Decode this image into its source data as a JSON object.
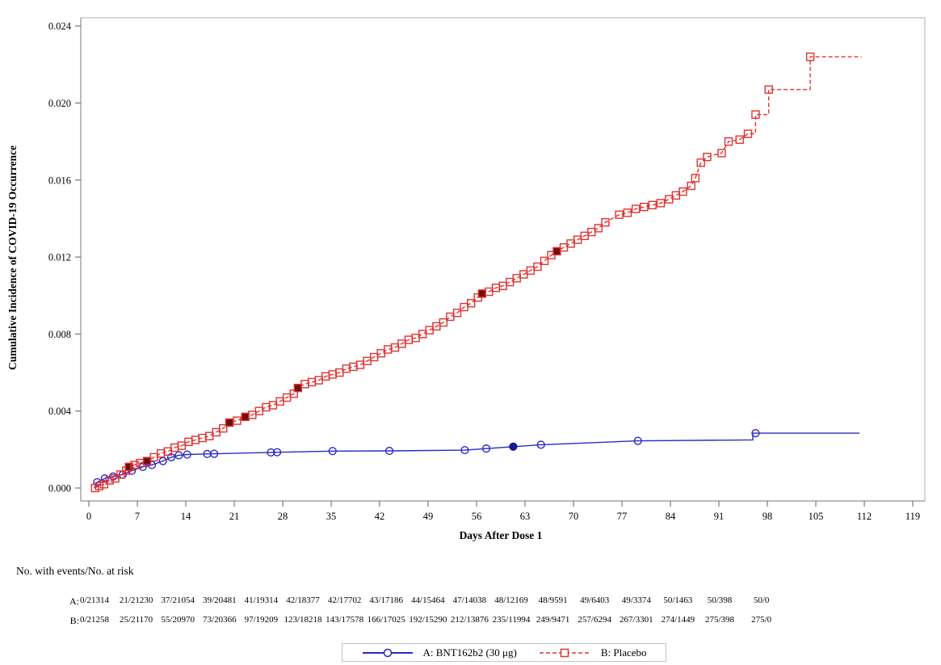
{
  "risk_table": {
    "header": "No. with events/No. at risk",
    "rows": [
      {
        "label": "A:",
        "values": [
          "0/21314",
          "21/21230",
          "37/21054",
          "39/20481",
          "41/19314",
          "42/18377",
          "42/17702",
          "43/17186",
          "44/15464",
          "47/14038",
          "48/12169",
          "48/9591",
          "49/6403",
          "49/3374",
          "50/1463",
          "50/398",
          "50/0"
        ]
      },
      {
        "label": "B:",
        "values": [
          "0/21258",
          "25/21170",
          "55/20970",
          "73/20366",
          "97/19209",
          "123/18218",
          "143/17578",
          "166/17025",
          "192/15290",
          "212/13876",
          "235/11994",
          "249/9471",
          "257/6294",
          "267/3301",
          "274/1449",
          "275/398",
          "275/0"
        ]
      }
    ]
  },
  "chart_data": {
    "type": "line",
    "title": "",
    "xlabel": "Days After Dose 1",
    "ylabel": "Cumulative Incidence of COVID-19 Occurrence",
    "xlim": [
      0,
      119
    ],
    "ylim": [
      0,
      0.024
    ],
    "grid": false,
    "legend_position": "bottom",
    "x_ticks": [
      0,
      7,
      14,
      21,
      28,
      35,
      42,
      49,
      56,
      63,
      70,
      77,
      84,
      91,
      98,
      105,
      112,
      119
    ],
    "x_tick_labels": [
      "0",
      "7",
      "14",
      "21",
      "28",
      "35",
      "42",
      "49",
      "56",
      "63",
      "70",
      "77",
      "84",
      "91",
      "98",
      "105",
      "112",
      "119"
    ],
    "y_ticks": [
      0.0,
      0.004,
      0.008,
      0.012,
      0.016,
      0.02,
      0.024
    ],
    "y_tick_labels": [
      "0.000",
      "0.004",
      "0.008",
      "0.012",
      "0.016",
      "0.020",
      "0.024"
    ],
    "frame_color": "#bdbdbd",
    "axis_color": "#9a9a9a",
    "tick_color": "#777777",
    "series": [
      {
        "name": "A: BNT162b2 (30 μg)",
        "color": "#2a2ac4",
        "filled_color": "#15159d",
        "line_style": "solid",
        "marker": "circle",
        "line_points": [
          [
            0.8,
            0.0
          ],
          [
            1.2,
            0.0003
          ],
          [
            2.3,
            0.0005
          ],
          [
            3.5,
            0.0006
          ],
          [
            4.9,
            0.0007
          ],
          [
            6.2,
            0.0009
          ],
          [
            7.8,
            0.0011
          ],
          [
            9.1,
            0.0012
          ],
          [
            10.7,
            0.0014
          ],
          [
            11.9,
            0.0016
          ],
          [
            13.0,
            0.0017
          ],
          [
            14.2,
            0.00174
          ],
          [
            17.1,
            0.00177
          ],
          [
            18.1,
            0.00178
          ],
          [
            26.3,
            0.00185
          ],
          [
            27.2,
            0.00186
          ],
          [
            35.2,
            0.00192
          ],
          [
            43.4,
            0.00193
          ],
          [
            54.3,
            0.00197
          ],
          [
            57.4,
            0.00205
          ],
          [
            61.3,
            0.00215
          ],
          [
            65.3,
            0.00225
          ],
          [
            79.3,
            0.00245
          ],
          [
            95.9,
            0.0025
          ],
          [
            95.9,
            0.00285
          ],
          [
            111.3,
            0.00285
          ]
        ],
        "markers": [
          [
            1.2,
            0.0003,
            0
          ],
          [
            2.3,
            0.0005,
            0
          ],
          [
            3.5,
            0.0006,
            0
          ],
          [
            4.9,
            0.0007,
            0
          ],
          [
            6.2,
            0.0009,
            0
          ],
          [
            7.8,
            0.0011,
            0
          ],
          [
            9.1,
            0.0012,
            0
          ],
          [
            10.7,
            0.0014,
            0
          ],
          [
            11.9,
            0.0016,
            0
          ],
          [
            13.0,
            0.0017,
            0
          ],
          [
            14.2,
            0.00174,
            0
          ],
          [
            17.1,
            0.00177,
            0
          ],
          [
            18.1,
            0.00178,
            0
          ],
          [
            26.3,
            0.00185,
            0
          ],
          [
            27.2,
            0.00186,
            0
          ],
          [
            35.2,
            0.00192,
            0
          ],
          [
            43.4,
            0.00193,
            0
          ],
          [
            54.3,
            0.00197,
            0
          ],
          [
            57.4,
            0.00205,
            0
          ],
          [
            61.3,
            0.00215,
            1
          ],
          [
            65.3,
            0.00225,
            0
          ],
          [
            79.3,
            0.00245,
            0
          ],
          [
            96.3,
            0.00285,
            0
          ]
        ]
      },
      {
        "name": "B: Placebo",
        "color": "#e03232",
        "filled_color": "#6e0e0e",
        "line_style": "dashed",
        "marker": "square",
        "line_points": [
          [
            0.8,
            0.0
          ],
          [
            1.5,
            0.0001
          ],
          [
            2.2,
            0.0002
          ],
          [
            3.0,
            0.0004
          ],
          [
            3.8,
            0.0005
          ],
          [
            4.6,
            0.0007
          ],
          [
            5.4,
            0.0009
          ],
          [
            5.8,
            0.0011
          ],
          [
            6.6,
            0.0012
          ],
          [
            7.4,
            0.0013
          ],
          [
            8.4,
            0.0014
          ],
          [
            9.4,
            0.0016
          ],
          [
            10.4,
            0.0018
          ],
          [
            11.4,
            0.0019
          ],
          [
            12.4,
            0.0021
          ],
          [
            13.4,
            0.0022
          ],
          [
            14.4,
            0.0024
          ],
          [
            15.4,
            0.0025
          ],
          [
            16.4,
            0.0026
          ],
          [
            17.4,
            0.0027
          ],
          [
            18.4,
            0.0029
          ],
          [
            19.4,
            0.0031
          ],
          [
            20.3,
            0.0034
          ],
          [
            21.4,
            0.0035
          ],
          [
            22.6,
            0.0037
          ],
          [
            23.6,
            0.0038
          ],
          [
            24.6,
            0.004
          ],
          [
            25.6,
            0.0042
          ],
          [
            26.6,
            0.0043
          ],
          [
            27.6,
            0.0045
          ],
          [
            28.6,
            0.0047
          ],
          [
            29.6,
            0.0049
          ],
          [
            30.2,
            0.0052
          ],
          [
            31.2,
            0.0054
          ],
          [
            32.2,
            0.0055
          ],
          [
            33.2,
            0.0056
          ],
          [
            34.2,
            0.0058
          ],
          [
            35.2,
            0.0059
          ],
          [
            36.2,
            0.006
          ],
          [
            37.2,
            0.0062
          ],
          [
            38.2,
            0.0063
          ],
          [
            39.2,
            0.0064
          ],
          [
            40.2,
            0.0066
          ],
          [
            41.2,
            0.0068
          ],
          [
            42.2,
            0.007
          ],
          [
            43.2,
            0.0072
          ],
          [
            44.2,
            0.0073
          ],
          [
            45.2,
            0.0075
          ],
          [
            46.2,
            0.0077
          ],
          [
            47.2,
            0.0078
          ],
          [
            48.2,
            0.008
          ],
          [
            49.2,
            0.0082
          ],
          [
            50.2,
            0.0084
          ],
          [
            51.2,
            0.0086
          ],
          [
            52.2,
            0.0089
          ],
          [
            53.2,
            0.0091
          ],
          [
            54.2,
            0.0094
          ],
          [
            55.2,
            0.0096
          ],
          [
            56.2,
            0.0099
          ],
          [
            56.8,
            0.0101
          ],
          [
            57.8,
            0.0102
          ],
          [
            58.8,
            0.0104
          ],
          [
            59.8,
            0.0105
          ],
          [
            60.8,
            0.0107
          ],
          [
            61.8,
            0.0109
          ],
          [
            62.8,
            0.0111
          ],
          [
            63.8,
            0.0113
          ],
          [
            64.8,
            0.0115
          ],
          [
            65.8,
            0.0118
          ],
          [
            66.8,
            0.0121
          ],
          [
            67.6,
            0.0123
          ],
          [
            68.6,
            0.0125
          ],
          [
            69.6,
            0.0127
          ],
          [
            70.6,
            0.0129
          ],
          [
            71.6,
            0.0131
          ],
          [
            72.6,
            0.0133
          ],
          [
            73.6,
            0.0135
          ],
          [
            74.6,
            0.0138
          ],
          [
            76.6,
            0.0142
          ],
          [
            77.8,
            0.0143
          ],
          [
            79.0,
            0.0145
          ],
          [
            80.2,
            0.0146
          ],
          [
            81.4,
            0.0147
          ],
          [
            82.6,
            0.0148
          ],
          [
            83.8,
            0.015
          ],
          [
            84.8,
            0.0152
          ],
          [
            85.8,
            0.0154
          ],
          [
            87.0,
            0.0157
          ],
          [
            87.6,
            0.0161
          ],
          [
            88.4,
            0.0169
          ],
          [
            89.3,
            0.0172
          ],
          [
            91.4,
            0.0174
          ],
          [
            92.4,
            0.018
          ],
          [
            94.0,
            0.0181
          ],
          [
            95.2,
            0.0184
          ],
          [
            96.3,
            0.0184
          ],
          [
            96.3,
            0.0194
          ],
          [
            98.2,
            0.0194
          ],
          [
            98.2,
            0.0207
          ],
          [
            104.2,
            0.0207
          ],
          [
            104.2,
            0.0224
          ],
          [
            111.6,
            0.0224
          ]
        ],
        "markers": [
          [
            0.9,
            0.0,
            0
          ],
          [
            1.5,
            0.0001,
            0
          ],
          [
            2.2,
            0.0002,
            0
          ],
          [
            3.0,
            0.0004,
            0
          ],
          [
            3.8,
            0.0005,
            0
          ],
          [
            4.6,
            0.0007,
            0
          ],
          [
            5.4,
            0.0009,
            0
          ],
          [
            5.8,
            0.0011,
            1
          ],
          [
            6.6,
            0.0012,
            0
          ],
          [
            7.4,
            0.0013,
            0
          ],
          [
            8.4,
            0.0014,
            1
          ],
          [
            9.4,
            0.0016,
            0
          ],
          [
            10.4,
            0.0018,
            0
          ],
          [
            11.4,
            0.0019,
            0
          ],
          [
            12.4,
            0.0021,
            0
          ],
          [
            13.4,
            0.0022,
            0
          ],
          [
            14.4,
            0.0024,
            0
          ],
          [
            15.4,
            0.0025,
            0
          ],
          [
            16.4,
            0.0026,
            0
          ],
          [
            17.4,
            0.0027,
            0
          ],
          [
            18.4,
            0.0029,
            0
          ],
          [
            19.4,
            0.0031,
            0
          ],
          [
            20.3,
            0.0034,
            1
          ],
          [
            21.4,
            0.0035,
            0
          ],
          [
            22.6,
            0.0037,
            1
          ],
          [
            23.6,
            0.0038,
            0
          ],
          [
            24.6,
            0.004,
            0
          ],
          [
            25.6,
            0.0042,
            0
          ],
          [
            26.6,
            0.0043,
            0
          ],
          [
            27.6,
            0.0045,
            0
          ],
          [
            28.6,
            0.0047,
            0
          ],
          [
            29.6,
            0.0049,
            0
          ],
          [
            30.2,
            0.0052,
            1
          ],
          [
            31.2,
            0.0054,
            0
          ],
          [
            32.2,
            0.0055,
            0
          ],
          [
            33.2,
            0.0056,
            0
          ],
          [
            34.2,
            0.0058,
            0
          ],
          [
            35.2,
            0.0059,
            0
          ],
          [
            36.2,
            0.006,
            0
          ],
          [
            37.2,
            0.0062,
            0
          ],
          [
            38.2,
            0.0063,
            0
          ],
          [
            39.2,
            0.0064,
            0
          ],
          [
            40.2,
            0.0066,
            0
          ],
          [
            41.2,
            0.0068,
            0
          ],
          [
            42.2,
            0.007,
            0
          ],
          [
            43.2,
            0.0072,
            0
          ],
          [
            44.2,
            0.0073,
            0
          ],
          [
            45.2,
            0.0075,
            0
          ],
          [
            46.2,
            0.0077,
            0
          ],
          [
            47.2,
            0.0078,
            0
          ],
          [
            48.2,
            0.008,
            0
          ],
          [
            49.2,
            0.0082,
            0
          ],
          [
            50.2,
            0.0084,
            0
          ],
          [
            51.2,
            0.0086,
            0
          ],
          [
            52.2,
            0.0089,
            0
          ],
          [
            53.2,
            0.0091,
            0
          ],
          [
            54.2,
            0.0094,
            0
          ],
          [
            55.2,
            0.0096,
            0
          ],
          [
            56.2,
            0.0099,
            0
          ],
          [
            56.8,
            0.0101,
            1
          ],
          [
            57.8,
            0.0102,
            0
          ],
          [
            58.8,
            0.0104,
            0
          ],
          [
            59.8,
            0.0105,
            0
          ],
          [
            60.8,
            0.0107,
            0
          ],
          [
            61.8,
            0.0109,
            0
          ],
          [
            62.8,
            0.0111,
            0
          ],
          [
            63.8,
            0.0113,
            0
          ],
          [
            64.8,
            0.0115,
            0
          ],
          [
            65.8,
            0.0118,
            0
          ],
          [
            66.8,
            0.0121,
            0
          ],
          [
            67.6,
            0.0123,
            1
          ],
          [
            68.6,
            0.0125,
            0
          ],
          [
            69.6,
            0.0127,
            0
          ],
          [
            70.6,
            0.0129,
            0
          ],
          [
            71.6,
            0.0131,
            0
          ],
          [
            72.6,
            0.0133,
            0
          ],
          [
            73.6,
            0.0135,
            0
          ],
          [
            74.6,
            0.0138,
            0
          ],
          [
            76.6,
            0.0142,
            0
          ],
          [
            77.8,
            0.0143,
            0
          ],
          [
            79.0,
            0.0145,
            0
          ],
          [
            80.2,
            0.0146,
            0
          ],
          [
            81.4,
            0.0147,
            0
          ],
          [
            82.6,
            0.0148,
            0
          ],
          [
            83.8,
            0.015,
            0
          ],
          [
            84.8,
            0.0152,
            0
          ],
          [
            85.8,
            0.0154,
            0
          ],
          [
            87.0,
            0.0157,
            0
          ],
          [
            87.6,
            0.0161,
            0
          ],
          [
            88.4,
            0.0169,
            0
          ],
          [
            89.3,
            0.0172,
            0
          ],
          [
            91.4,
            0.0174,
            0
          ],
          [
            92.4,
            0.018,
            0
          ],
          [
            94.0,
            0.0181,
            0
          ],
          [
            95.2,
            0.0184,
            0
          ],
          [
            96.3,
            0.0194,
            0
          ],
          [
            98.2,
            0.0207,
            0
          ],
          [
            104.2,
            0.0224,
            0
          ]
        ]
      }
    ]
  }
}
